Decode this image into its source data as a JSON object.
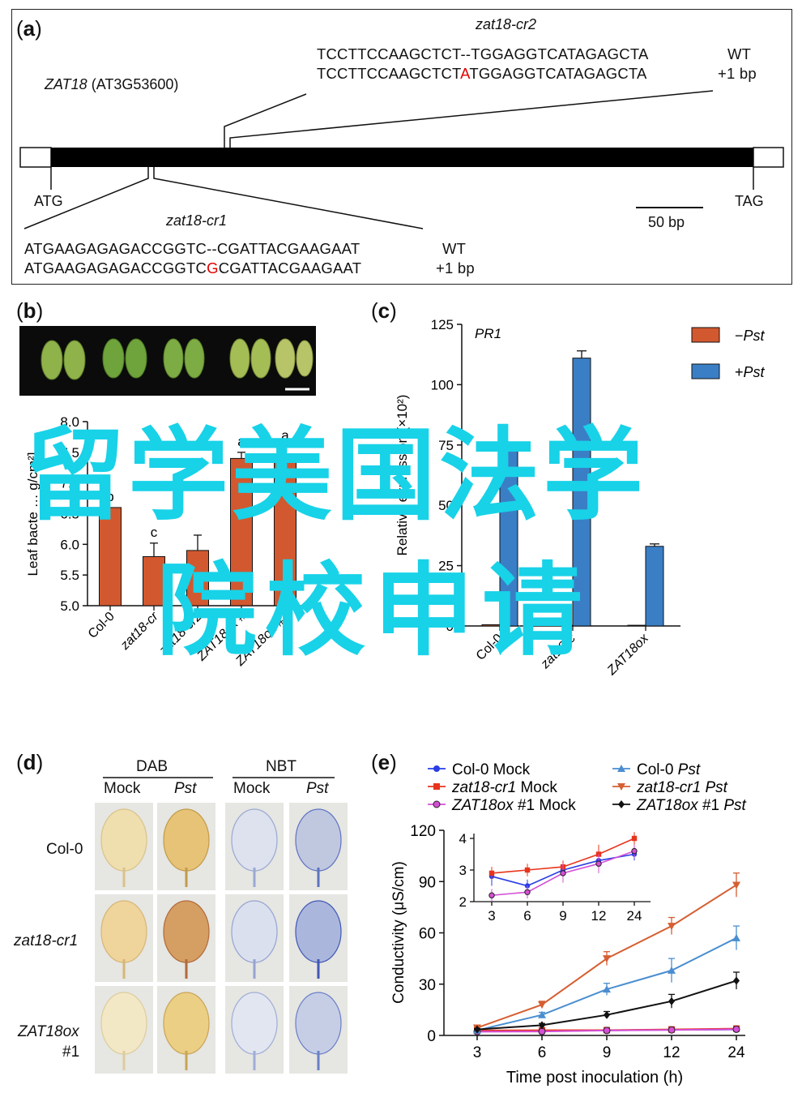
{
  "panel_a": {
    "label": "a",
    "gene_name": "ZAT18",
    "gene_locus": "(AT3G53600)",
    "cr2": {
      "allele": "zat18-cr2",
      "wt_prefix": "TCCTTCCAAGCTCT",
      "wt_mid": "--",
      "wt_suffix": "TGGAGGTCATAGAGCTA",
      "wt_tag": "WT",
      "mut_prefix": "TCCTTCCAAGCTCT",
      "mut_ins": "A",
      "mut_suffix": "TGGAGGTCATAGAGCTA",
      "mut_tag": "+1 bp"
    },
    "cr1": {
      "allele": "zat18-cr1",
      "wt_prefix": "ATGAAGAGAGACCGGTC",
      "wt_mid": "--",
      "wt_suffix": "CGATTACGAAGAAT",
      "wt_tag": "WT",
      "mut_prefix": "ATGAAGAGAGACCGGTC",
      "mut_ins": "G",
      "mut_suffix": "CGATTACGAAGAAT",
      "mut_tag": "+1 bp"
    },
    "start": "ATG",
    "stop": "TAG",
    "scale": "50 bp"
  },
  "panel_b": {
    "label": "b",
    "y_label": "Leaf bacte",
    "y_label_tail": "g/cm²]",
    "chart_data": {
      "type": "bar",
      "categories": [
        "Col-0",
        "zat18-cr1",
        "zat18-cr2",
        "ZAT18ox #1",
        "ZAT18ox #2"
      ],
      "values": [
        6.6,
        5.8,
        5.9,
        7.4,
        7.4
      ],
      "errors": [
        0.0,
        0.22,
        0.25,
        0.1,
        0.2
      ],
      "letters": [
        "b",
        "c",
        "",
        "a",
        "a"
      ],
      "ylim": [
        5.0,
        8.0
      ],
      "yticks": [
        "5.0",
        "5.5",
        "6.0",
        "6.5",
        "7.0",
        "7.5",
        "8.0"
      ],
      "tick_labels": [
        "Col-0",
        "zat18-cr",
        "zat18-cr2",
        "ZAT18ox #",
        "ZAT18ox #2"
      ],
      "color": "#d2582f"
    }
  },
  "panel_c": {
    "label": "c",
    "gene": "PR1",
    "y_label": "Relative expression (×10²)",
    "legend": [
      {
        "prefix": "−",
        "name": "Pst",
        "color": "#d2582f"
      },
      {
        "prefix": "+",
        "name": "Pst",
        "color": "#3a7fc6"
      }
    ],
    "chart_data": {
      "type": "bar",
      "categories": [
        "Col-0",
        "zat18-cr1",
        "ZAT18ox #1"
      ],
      "series": [
        {
          "name": "−Pst",
          "values": [
            0.5,
            0.3,
            0.3
          ],
          "color": "#d2582f"
        },
        {
          "name": "+Pst",
          "values": [
            75,
            111,
            33
          ],
          "errors": [
            0,
            3,
            1
          ],
          "color": "#3a7fc6"
        }
      ],
      "ylim": [
        0,
        125
      ],
      "yticks": [
        "0",
        "25",
        "50",
        "75",
        "100",
        "125"
      ],
      "tick_labels": [
        "Col-0",
        "zat18-c",
        "ZAT18ox"
      ]
    }
  },
  "panel_d": {
    "label": "d",
    "groups": [
      "DAB",
      "NBT"
    ],
    "columns": [
      "Mock",
      "Pst",
      "Mock",
      "Pst"
    ],
    "rows": [
      "Col-0",
      "zat18-cr1",
      "ZAT18ox",
      "#1"
    ]
  },
  "panel_e": {
    "label": "e",
    "x_label": "Time post inoculation (h)",
    "y_label": "Conductivity (μS/cm)",
    "legend": [
      {
        "name": "Col-0",
        "cond": "Mock",
        "color": "#2a3ee6",
        "marker": "circle"
      },
      {
        "name": "zat18-cr1",
        "cond": "Mock",
        "color": "#e8341c",
        "marker": "square"
      },
      {
        "name": "ZAT18ox #1",
        "cond": "Mock",
        "color": "#d44fd6",
        "marker": "circle-open"
      },
      {
        "name": "Col-0",
        "cond": "Pst",
        "color": "#4a8ed0",
        "marker": "triangle"
      },
      {
        "name": "zat18-cr1",
        "cond": "Pst",
        "color": "#d65f32",
        "marker": "triangle-down"
      },
      {
        "name": "ZAT18ox #1",
        "cond": "Pst",
        "color": "#111111",
        "marker": "diamond"
      }
    ],
    "chart_data": {
      "type": "line",
      "x": [
        "3",
        "6",
        "9",
        "12",
        "24"
      ],
      "ylim": [
        0,
        120
      ],
      "yticks": [
        "0",
        "30",
        "60",
        "90",
        "120"
      ],
      "series": [
        {
          "name": "Col-0 Mock",
          "values": [
            2.8,
            2.5,
            3.0,
            3.3,
            3.5
          ],
          "errors": [
            0.3,
            0.2,
            0.2,
            0.3,
            0.2
          ],
          "color": "#2a3ee6"
        },
        {
          "name": "zat18-cr1 Mock",
          "values": [
            2.9,
            3.0,
            3.1,
            3.5,
            4.0
          ],
          "errors": [
            0.2,
            0.2,
            0.2,
            0.3,
            0.2
          ],
          "color": "#e8341c"
        },
        {
          "name": "ZAT18ox #1 Mock",
          "values": [
            2.2,
            2.3,
            2.9,
            3.2,
            3.6
          ],
          "errors": [
            0.2,
            0.2,
            0.3,
            0.3,
            0.2
          ],
          "color": "#d44fd6"
        },
        {
          "name": "Col-0 Pst",
          "values": [
            3,
            12,
            27,
            38,
            57
          ],
          "errors": [
            0.5,
            1.5,
            3.5,
            7,
            7
          ],
          "color": "#4a8ed0"
        },
        {
          "name": "zat18-cr1 Pst",
          "values": [
            4.5,
            18,
            45,
            64,
            88
          ],
          "errors": [
            0.5,
            2,
            4,
            5,
            7
          ],
          "color": "#d65f32"
        },
        {
          "name": "ZAT18ox #1 Pst",
          "values": [
            3.5,
            6,
            12,
            20,
            32
          ],
          "errors": [
            0.5,
            1,
            2,
            4,
            5
          ],
          "color": "#111111"
        }
      ],
      "inset": {
        "ylim": [
          2,
          4
        ],
        "yticks": [
          "2",
          "3",
          "4"
        ],
        "x": [
          "3",
          "6",
          "9",
          "12",
          "24"
        ]
      }
    }
  },
  "watermark": {
    "line1": "留学美国法学",
    "line2": "院校申请"
  }
}
